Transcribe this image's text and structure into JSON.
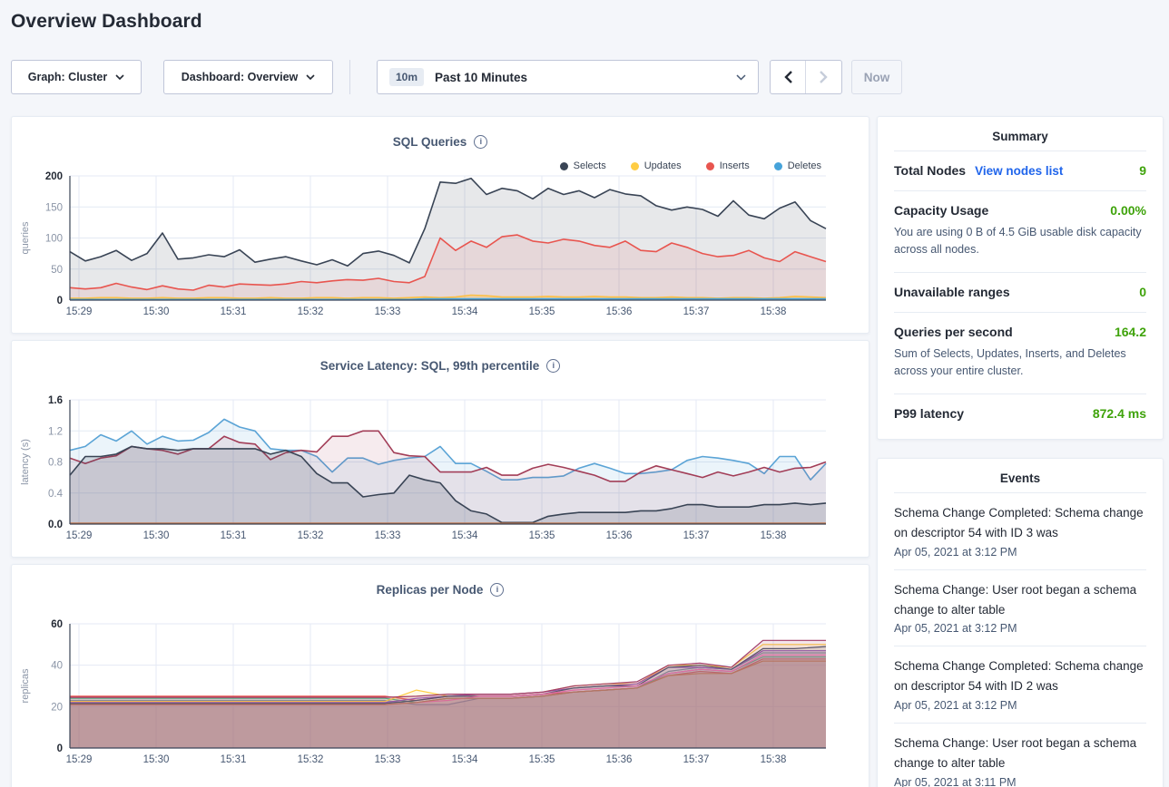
{
  "header": {
    "title": "Overview Dashboard"
  },
  "toolbar": {
    "graph_label": "Graph: Cluster",
    "dashboard_label": "Dashboard: Overview",
    "time_badge": "10m",
    "time_label": "Past 10 Minutes",
    "now_label": "Now"
  },
  "summary": {
    "title": "Summary",
    "rows": [
      {
        "label": "Total Nodes",
        "link": "View nodes list",
        "value": "9"
      },
      {
        "label": "Capacity Usage",
        "value": "0.00%",
        "desc": "You are using 0 B of 4.5 GiB usable disk capacity across all nodes."
      },
      {
        "label": "Unavailable ranges",
        "value": "0"
      },
      {
        "label": "Queries per second",
        "value": "164.2",
        "desc": "Sum of Selects, Updates, Inserts, and Deletes across your entire cluster."
      },
      {
        "label": "P99 latency",
        "value": "872.4 ms"
      }
    ]
  },
  "events": {
    "title": "Events",
    "items": [
      {
        "text": "Schema Change Completed: Schema change on descriptor 54 with ID 3 was",
        "time": "Apr 05, 2021 at 3:12 PM"
      },
      {
        "text": "Schema Change: User root began a schema change to alter table",
        "time": "Apr 05, 2021 at 3:12 PM"
      },
      {
        "text": "Schema Change Completed: Schema change on descriptor 54 with ID 2 was",
        "time": "Apr 05, 2021 at 3:12 PM"
      },
      {
        "text": "Schema Change: User root began a schema change to alter table",
        "time": "Apr 05, 2021 at 3:11 PM"
      }
    ]
  },
  "colors": {
    "green": "#3fa30b",
    "link_blue": "#2065eb",
    "axis": "#3b4558",
    "grid": "#e4eaf4"
  },
  "chart_data": [
    {
      "type": "area",
      "title": "SQL Queries",
      "ylabel": "queries",
      "ylim": [
        0,
        200
      ],
      "yticks": [
        [
          0,
          "0"
        ],
        [
          50,
          "50"
        ],
        [
          100,
          "100"
        ],
        [
          150,
          "150"
        ],
        [
          200,
          "200"
        ]
      ],
      "xticks": [
        "15:29",
        "15:30",
        "15:31",
        "15:32",
        "15:33",
        "15:34",
        "15:35",
        "15:36",
        "15:37",
        "15:38"
      ],
      "legend_position": "top-right",
      "series": [
        {
          "name": "Selects",
          "color": "#394455",
          "fill": 0.12,
          "width": 1.6,
          "values": [
            78,
            63,
            70,
            80,
            64,
            75,
            108,
            66,
            68,
            73,
            70,
            81,
            61,
            66,
            70,
            63,
            57,
            65,
            55,
            75,
            79,
            72,
            60,
            115,
            190,
            188,
            196,
            170,
            180,
            176,
            163,
            180,
            170,
            176,
            165,
            178,
            171,
            168,
            152,
            145,
            150,
            146,
            135,
            160,
            137,
            131,
            148,
            158,
            128,
            115
          ]
        },
        {
          "name": "Updates",
          "color": "#ffcd44",
          "fill": 0.3,
          "width": 1.6,
          "values": [
            3,
            3,
            4,
            4,
            3,
            3,
            4,
            3,
            3,
            4,
            4,
            3,
            3,
            4,
            3,
            3,
            4,
            4,
            3,
            4,
            4,
            3,
            4,
            5,
            4,
            5,
            8,
            7,
            5,
            5,
            5,
            6,
            5,
            5,
            6,
            5,
            5,
            4,
            4,
            5,
            4,
            4,
            3,
            4,
            4,
            3,
            4,
            6,
            5,
            4
          ]
        },
        {
          "name": "Inserts",
          "color": "#e8554f",
          "fill": 0.11,
          "width": 1.6,
          "values": [
            20,
            18,
            20,
            27,
            21,
            17,
            23,
            18,
            16,
            24,
            21,
            26,
            25,
            24,
            26,
            30,
            28,
            31,
            33,
            32,
            35,
            30,
            28,
            38,
            100,
            80,
            95,
            85,
            102,
            105,
            95,
            92,
            98,
            95,
            88,
            85,
            95,
            80,
            78,
            92,
            85,
            75,
            70,
            72,
            80,
            68,
            62,
            78,
            70,
            62
          ]
        },
        {
          "name": "Deletes",
          "color": "#46a3da",
          "fill": 0.25,
          "width": 1.6,
          "values": [
            1,
            1,
            1,
            1,
            1,
            1,
            1,
            1,
            1,
            1,
            1,
            1,
            1,
            1,
            1,
            1,
            1,
            1,
            1,
            1,
            1,
            1,
            1,
            2,
            2,
            2,
            2,
            2,
            2,
            2,
            2,
            2,
            2,
            2,
            2,
            2,
            2,
            2,
            2,
            2,
            2,
            2,
            2,
            2,
            2,
            2,
            2,
            2,
            2,
            2
          ]
        }
      ]
    },
    {
      "type": "area",
      "title": "Service Latency: SQL, 99th percentile",
      "ylabel": "latency (s)",
      "ylim": [
        0,
        1.6
      ],
      "yticks": [
        [
          0,
          "0.0"
        ],
        [
          0.4,
          "0.4"
        ],
        [
          0.8,
          "0.8"
        ],
        [
          1.2,
          "1.2"
        ],
        [
          1.6,
          "1.6"
        ]
      ],
      "xticks": [
        "15:29",
        "15:30",
        "15:31",
        "15:32",
        "15:33",
        "15:34",
        "15:35",
        "15:36",
        "15:37",
        "15:38"
      ],
      "series": [
        {
          "name": "",
          "color": "#5ba4d6",
          "fill": 0.12,
          "width": 1.6,
          "values": [
            0.95,
            1.0,
            1.15,
            1.07,
            1.2,
            1.03,
            1.13,
            1.07,
            1.08,
            1.18,
            1.35,
            1.25,
            1.2,
            0.97,
            0.95,
            0.95,
            0.87,
            0.67,
            0.85,
            0.85,
            0.77,
            0.82,
            0.85,
            0.87,
            1.0,
            0.78,
            0.78,
            0.68,
            0.57,
            0.57,
            0.6,
            0.6,
            0.62,
            0.72,
            0.78,
            0.72,
            0.65,
            0.65,
            0.67,
            0.7,
            0.82,
            0.87,
            0.85,
            0.82,
            0.78,
            0.65,
            0.87,
            0.87,
            0.57,
            0.78
          ]
        },
        {
          "name": "",
          "color": "#a23d57",
          "fill": 0.1,
          "width": 1.6,
          "values": [
            0.85,
            0.78,
            0.85,
            0.88,
            1.0,
            0.97,
            0.95,
            0.9,
            0.97,
            0.97,
            1.13,
            1.05,
            1.03,
            0.83,
            0.92,
            0.95,
            0.93,
            1.13,
            1.13,
            1.2,
            1.2,
            0.92,
            0.88,
            0.87,
            0.67,
            0.67,
            0.67,
            0.73,
            0.63,
            0.63,
            0.72,
            0.77,
            0.73,
            0.68,
            0.63,
            0.55,
            0.55,
            0.67,
            0.75,
            0.7,
            0.65,
            0.6,
            0.67,
            0.62,
            0.67,
            0.73,
            0.67,
            0.72,
            0.73,
            0.8
          ]
        },
        {
          "name": "",
          "color": "#394455",
          "fill": 0.16,
          "width": 1.6,
          "values": [
            0.63,
            0.87,
            0.87,
            0.9,
            1.0,
            0.97,
            0.97,
            0.95,
            0.97,
            0.97,
            0.97,
            0.97,
            0.97,
            0.9,
            0.95,
            0.87,
            0.65,
            0.53,
            0.53,
            0.35,
            0.38,
            0.4,
            0.63,
            0.57,
            0.53,
            0.3,
            0.17,
            0.13,
            0.02,
            0.02,
            0.02,
            0.1,
            0.13,
            0.15,
            0.15,
            0.15,
            0.15,
            0.17,
            0.17,
            0.2,
            0.25,
            0.25,
            0.22,
            0.22,
            0.22,
            0.25,
            0.25,
            0.27,
            0.25,
            0.27
          ]
        },
        {
          "name": "",
          "color": "#bf6d3f",
          "fill": 0,
          "width": 1.4,
          "values": [
            0.01,
            0.01,
            0.01,
            0.01,
            0.01,
            0.01,
            0.01,
            0.01,
            0.01,
            0.01,
            0.01,
            0.01,
            0.01,
            0.01,
            0.01,
            0.01,
            0.01,
            0.01,
            0.01,
            0.01,
            0.01,
            0.01,
            0.01,
            0.01,
            0.01,
            0.01,
            0.01,
            0.01,
            0.01,
            0.01,
            0.01,
            0.01,
            0.01,
            0.01,
            0.01,
            0.01,
            0.01,
            0.01,
            0.01,
            0.01,
            0.01,
            0.01,
            0.01,
            0.01,
            0.01,
            0.01,
            0.01,
            0.01,
            0.01,
            0.01
          ]
        }
      ]
    },
    {
      "type": "area",
      "title": "Replicas per Node",
      "ylabel": "replicas",
      "ylim": [
        0,
        60
      ],
      "yticks": [
        [
          0,
          "0"
        ],
        [
          20,
          "20"
        ],
        [
          40,
          "40"
        ],
        [
          60,
          "60"
        ]
      ],
      "xticks": [
        "15:29",
        "15:30",
        "15:31",
        "15:32",
        "15:33",
        "15:34",
        "15:35",
        "15:36",
        "15:37",
        "15:38"
      ],
      "series": [
        {
          "name": "",
          "color": "#e8554f",
          "fill": 0.13,
          "width": 1.2,
          "values": [
            25,
            25,
            25,
            25,
            25,
            25,
            25,
            25,
            25,
            25,
            25,
            23,
            25,
            25,
            25,
            26,
            27,
            28,
            29,
            35,
            37,
            36,
            43,
            43,
            43
          ]
        },
        {
          "name": "",
          "color": "#47b881",
          "fill": 0.13,
          "width": 1.2,
          "values": [
            24,
            24,
            24,
            24,
            24,
            24,
            24,
            24,
            24,
            24,
            24,
            22,
            24,
            24,
            24,
            25,
            27,
            28,
            29,
            36,
            38,
            37,
            44,
            44,
            44
          ]
        },
        {
          "name": "",
          "color": "#7a91ab",
          "fill": 0.13,
          "width": 1.2,
          "values": [
            23,
            23,
            23,
            23,
            23,
            23,
            23,
            23,
            23,
            23,
            23,
            21,
            21,
            24,
            24,
            25,
            27,
            28,
            29,
            37,
            39,
            38,
            46,
            46,
            46
          ]
        },
        {
          "name": "",
          "color": "#ffcd44",
          "fill": 0.13,
          "width": 1.2,
          "values": [
            22.5,
            22.5,
            22.5,
            22.5,
            22.5,
            22.5,
            22.5,
            22.5,
            22.5,
            22.5,
            22.5,
            28,
            25,
            26,
            26,
            27,
            30,
            31,
            31,
            40,
            40,
            39,
            50,
            50,
            50
          ]
        },
        {
          "name": "",
          "color": "#9a59b5",
          "fill": 0.13,
          "width": 1.2,
          "values": [
            22,
            22,
            22,
            22,
            22,
            22,
            22,
            22,
            22,
            22,
            22,
            24,
            25,
            26,
            26,
            27,
            29,
            30,
            31,
            39,
            39,
            38,
            47,
            47,
            47
          ]
        },
        {
          "name": "",
          "color": "#50596b",
          "fill": 0.13,
          "width": 1.2,
          "values": [
            21.5,
            21.5,
            21.5,
            21.5,
            21.5,
            21.5,
            21.5,
            21.5,
            21.5,
            21.5,
            21.5,
            23,
            25,
            25,
            25,
            26,
            29,
            30,
            30,
            39,
            40,
            38,
            48,
            48,
            49
          ]
        },
        {
          "name": "",
          "color": "#e873ae",
          "fill": 0.13,
          "width": 1.2,
          "values": [
            21,
            21,
            21,
            21,
            21,
            21,
            21,
            21,
            21,
            21,
            21,
            22,
            23,
            25,
            25,
            26,
            28,
            29,
            30,
            36,
            38,
            37,
            45,
            45,
            45
          ]
        },
        {
          "name": "",
          "color": "#bb7d60",
          "fill": 0.13,
          "width": 1.2,
          "values": [
            21,
            21,
            21,
            21,
            21,
            21,
            21,
            21,
            21,
            21,
            21,
            22,
            24,
            24,
            24,
            25,
            27,
            28,
            29,
            35,
            36,
            36,
            42,
            42,
            42
          ]
        },
        {
          "name": "",
          "color": "#a23d68",
          "fill": 0.13,
          "width": 1.2,
          "values": [
            24.5,
            24.5,
            24.5,
            24.5,
            24.5,
            24.5,
            24.5,
            24.5,
            24.5,
            24.5,
            24.5,
            25,
            26,
            26,
            26,
            27,
            30,
            31,
            32,
            40,
            41,
            39,
            52,
            52,
            52
          ]
        }
      ]
    }
  ]
}
